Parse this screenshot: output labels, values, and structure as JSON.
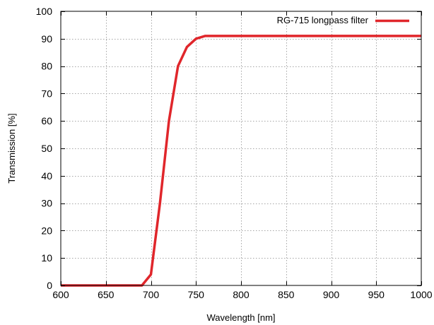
{
  "chart_data": {
    "type": "line",
    "xlabel": "Wavelength [nm]",
    "ylabel": "Transmission [%]",
    "xlim": [
      600,
      1000
    ],
    "ylim": [
      0,
      100
    ],
    "xticks": [
      600,
      650,
      700,
      750,
      800,
      850,
      900,
      950,
      1000
    ],
    "yticks": [
      0,
      10,
      20,
      30,
      40,
      50,
      60,
      70,
      80,
      90,
      100
    ],
    "grid": true,
    "legend_position": "top-right",
    "series": [
      {
        "name": "RG-715 longpass filter",
        "color": "#e0262b",
        "x": [
          600,
          690,
          700,
          710,
          720,
          730,
          740,
          750,
          760,
          800,
          900,
          1000
        ],
        "y": [
          0,
          0,
          4,
          30,
          60,
          80,
          87,
          90,
          91,
          91,
          91,
          91
        ]
      }
    ]
  }
}
